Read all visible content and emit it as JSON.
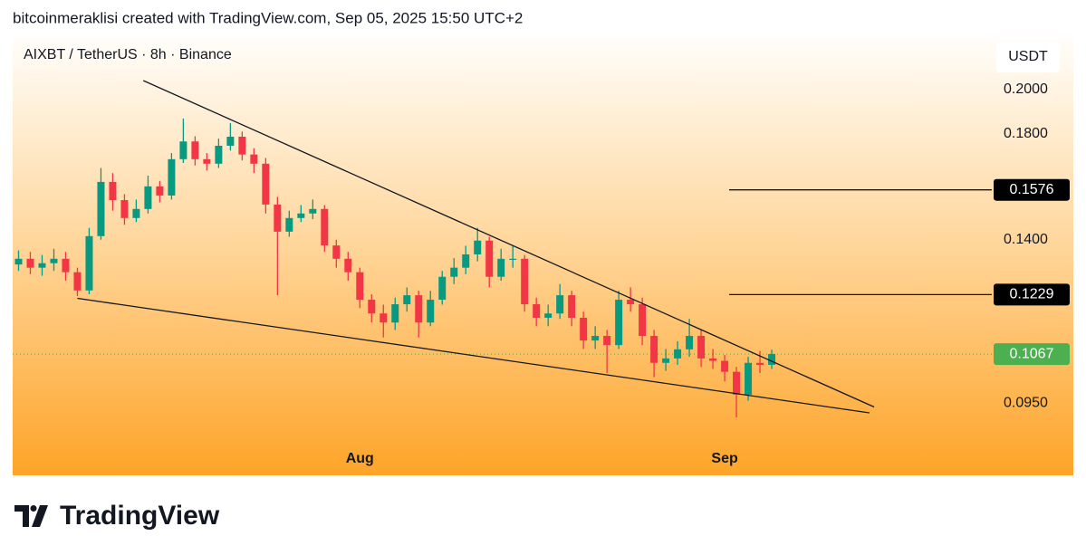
{
  "header": {
    "text": "bitcoinmeraklisi created with TradingView.com, Sep 05, 2025 15:50 UTC+2"
  },
  "chart_data": {
    "type": "candlestick",
    "title": "AIXBT / TetherUS · 8h · Binance",
    "y_axis_label": "USDT",
    "log_scale": true,
    "grid": false,
    "ylim": [
      0.08,
      0.227
    ],
    "xlim": [
      -0.5,
      82.7
    ],
    "yticks": [
      {
        "value": 0.2,
        "label": "0.2000"
      },
      {
        "value": 0.18,
        "label": "0.1800"
      },
      {
        "value": 0.14,
        "label": "0.1400"
      },
      {
        "value": 0.095,
        "label": "0.0950"
      }
    ],
    "xticks": [
      {
        "value": 29,
        "label": "Aug"
      },
      {
        "value": 60,
        "label": "Sep"
      }
    ],
    "up_color": "#089981",
    "down_color": "#f23645",
    "open": [
      0.132,
      0.1338,
      0.131,
      0.1324,
      0.1338,
      0.1296,
      0.1241,
      0.1412,
      0.1606,
      0.1538,
      0.1474,
      0.1506,
      0.1589,
      0.1555,
      0.1695,
      0.1768,
      0.1695,
      0.1677,
      0.175,
      0.1788,
      0.1714,
      0.1677,
      0.1522,
      0.1427,
      0.1474,
      0.149,
      0.1506,
      0.1381,
      0.1338,
      0.1296,
      0.1214,
      0.1175,
      0.115,
      0.1201,
      0.1227,
      0.115,
      0.1214,
      0.1282,
      0.131,
      0.1352,
      0.1397,
      0.1282,
      0.1338,
      0.1338,
      0.1201,
      0.1163,
      0.1175,
      0.1227,
      0.1163,
      0.1102,
      0.1114,
      0.109,
      0.1214,
      0.1201,
      0.1114,
      0.1045,
      0.1056,
      0.1079,
      0.1114,
      0.1056,
      0.105,
      0.1023,
      0.0969,
      0.1045,
      0.104
    ],
    "high": [
      0.1365,
      0.136,
      0.135,
      0.137,
      0.136,
      0.131,
      0.144,
      0.166,
      0.164,
      0.156,
      0.154,
      0.163,
      0.161,
      0.172,
      0.1867,
      0.179,
      0.172,
      0.178,
      0.1847,
      0.181,
      0.174,
      0.17,
      0.155,
      0.15,
      0.152,
      0.154,
      0.152,
      0.14,
      0.136,
      0.131,
      0.123,
      0.12,
      0.122,
      0.125,
      0.124,
      0.124,
      0.13,
      0.134,
      0.138,
      0.144,
      0.141,
      0.137,
      0.138,
      0.135,
      0.122,
      0.12,
      0.126,
      0.124,
      0.118,
      0.114,
      0.113,
      0.124,
      0.125,
      0.122,
      0.113,
      0.108,
      0.11,
      0.116,
      0.113,
      0.108,
      0.1065,
      0.1035,
      0.106,
      0.1075,
      0.1078
    ],
    "low": [
      0.13,
      0.129,
      0.1285,
      0.13,
      0.127,
      0.1225,
      0.123,
      0.14,
      0.15,
      0.145,
      0.146,
      0.149,
      0.153,
      0.154,
      0.168,
      0.167,
      0.165,
      0.166,
      0.173,
      0.169,
      0.164,
      0.149,
      0.1227,
      0.141,
      0.146,
      0.147,
      0.136,
      0.131,
      0.127,
      0.119,
      0.115,
      0.111,
      0.113,
      0.118,
      0.111,
      0.114,
      0.12,
      0.126,
      0.129,
      0.133,
      0.125,
      0.127,
      0.131,
      0.118,
      0.114,
      0.114,
      0.116,
      0.114,
      0.108,
      0.108,
      0.102,
      0.108,
      0.118,
      0.109,
      0.101,
      0.1025,
      0.104,
      0.106,
      0.1035,
      0.103,
      0.1,
      0.0918,
      0.0955,
      0.102,
      0.103
    ],
    "close": [
      0.1338,
      0.131,
      0.1324,
      0.1338,
      0.1296,
      0.1241,
      0.1412,
      0.1606,
      0.1538,
      0.1474,
      0.1506,
      0.1589,
      0.1555,
      0.1695,
      0.1768,
      0.1695,
      0.1677,
      0.175,
      0.1788,
      0.1714,
      0.1677,
      0.1522,
      0.1427,
      0.1474,
      0.149,
      0.1506,
      0.1381,
      0.1338,
      0.1296,
      0.1214,
      0.1175,
      0.115,
      0.1201,
      0.1227,
      0.115,
      0.1214,
      0.1282,
      0.131,
      0.1352,
      0.1397,
      0.1282,
      0.1338,
      0.1338,
      0.1201,
      0.1163,
      0.1175,
      0.1227,
      0.1163,
      0.1102,
      0.1114,
      0.109,
      0.1214,
      0.1201,
      0.1114,
      0.1045,
      0.1056,
      0.1079,
      0.1114,
      0.1056,
      0.105,
      0.1023,
      0.0969,
      0.1045,
      0.104,
      0.1067
    ],
    "levels": [
      {
        "value": 0.1576,
        "label": "0.1576"
      },
      {
        "value": 0.1229,
        "label": "0.1229"
      }
    ],
    "last_price": {
      "value": 0.1067,
      "label": "0.1067",
      "color": "#4caf50"
    },
    "trendlines": [
      {
        "x": [
          10.6,
          72.7
        ],
        "y": [
          0.2043,
          0.0941
        ]
      },
      {
        "x": [
          5,
          72.3
        ],
        "y": [
          0.1218,
          0.0928
        ]
      }
    ]
  },
  "footer": {
    "logo": "TradingView"
  }
}
